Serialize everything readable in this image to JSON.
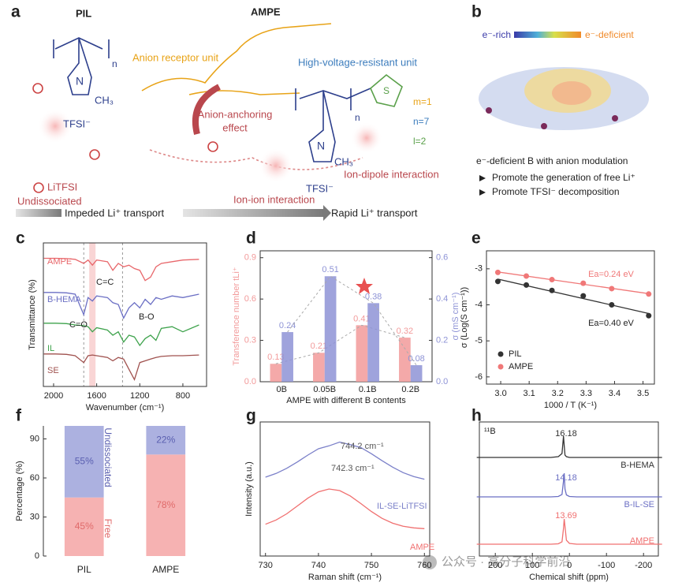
{
  "panel_a": {
    "label": "a",
    "pil": "PIL",
    "ampe": "AMPE",
    "n_pil": "n",
    "n_atom_1": "N",
    "ch3_1": "CH₃",
    "tfsi_1": "TFSI⁻",
    "anion_receptor": "Anion receptor unit",
    "high_voltage": "High-voltage-resistant unit",
    "anchoring_1": "Anion-anchoring",
    "anchoring_2": "effect",
    "m": "m=1",
    "n": "n=7",
    "l": "l=2",
    "n_ampe": "n",
    "n_atom_2": "N",
    "ch3_2": "CH₃",
    "tfsi_2": "TFSI⁻",
    "s_atom": "S",
    "litfsi": "LiTFSI",
    "undissociated": "Undissociated",
    "impeded": "Impeded Li⁺ transport",
    "ion_ion": "Ion-ion interaction",
    "ion_dipole": "Ion-dipole interaction",
    "rapid": "Rapid Li⁺ transport"
  },
  "panel_b": {
    "label": "b",
    "rich": "e⁻-rich",
    "deficient": "e⁻-deficient",
    "caption": "e⁻-deficient B with anion modulation",
    "points": [
      "Promote the generation of free Li⁺",
      "Promote TFSI⁻ decomposition"
    ]
  },
  "chart_data": [
    {
      "type": "line",
      "label": "c",
      "xlabel": "Wavenumber (cm⁻¹)",
      "ylabel": "Transmittance (%)",
      "xlim": [
        2095,
        580
      ],
      "xticks": [
        2000,
        1600,
        1200,
        800
      ],
      "ylim": [
        0,
        4.2
      ],
      "x": [
        2090,
        1980,
        1880,
        1800,
        1720,
        1680,
        1640,
        1600,
        1500,
        1450,
        1400,
        1350,
        1300,
        1250,
        1200,
        1150,
        1100,
        1050,
        1000,
        900,
        800,
        650
      ],
      "series": [
        {
          "name": "AMPE",
          "color": "#e8676b",
          "values": [
            3.75,
            3.75,
            3.74,
            3.72,
            3.6,
            3.7,
            3.55,
            3.7,
            3.65,
            3.4,
            3.6,
            3.5,
            3.55,
            3.45,
            3.4,
            3.1,
            3.2,
            3.5,
            3.6,
            3.65,
            3.7,
            3.72
          ]
        },
        {
          "name": "B-HEMA",
          "color": "#6b6fc4",
          "values": [
            2.75,
            2.75,
            2.74,
            2.7,
            2.1,
            2.6,
            2.5,
            2.65,
            2.6,
            2.45,
            2.4,
            2.0,
            2.3,
            2.45,
            2.3,
            2.55,
            2.4,
            2.6,
            2.55,
            2.65,
            2.6,
            2.7
          ]
        },
        {
          "name": "IL",
          "color": "#3fa34d",
          "values": [
            1.85,
            1.85,
            1.84,
            1.8,
            1.78,
            1.75,
            1.6,
            1.72,
            1.65,
            1.5,
            1.6,
            1.3,
            1.5,
            1.45,
            1.2,
            1.4,
            1.5,
            1.35,
            1.7,
            1.75,
            1.6,
            1.8
          ]
        },
        {
          "name": "SE",
          "color": "#a0524f",
          "values": [
            0.95,
            0.95,
            0.94,
            0.9,
            0.7,
            0.9,
            0.92,
            0.9,
            0.85,
            0.75,
            0.85,
            0.8,
            0.5,
            0.2,
            0.7,
            0.75,
            0.8,
            0.85,
            0.88,
            0.9,
            0.9,
            0.92
          ]
        }
      ],
      "annotations": [
        "C=C",
        "C=O",
        "B-O"
      ],
      "highlight_x": [
        1640,
        1720,
        1360
      ]
    },
    {
      "type": "bar",
      "label": "d",
      "xlabel": "AMPE with different B contents",
      "ylabel": "Transference number tLi⁺",
      "y2label": "σ (mS cm⁻¹)",
      "categories": [
        "0B",
        "0.05B",
        "0.1B",
        "0.2B"
      ],
      "ylim": [
        0,
        0.95
      ],
      "yticks": [
        {
          "value": 0,
          "label": "0.0"
        },
        0.3,
        0.6,
        0.9
      ],
      "y2lim": [
        0,
        0.633
      ],
      "y2ticks": [
        {
          "value": 0,
          "label": "0.0"
        },
        0.2,
        0.4,
        0.6
      ],
      "series": [
        {
          "color": "#f29a9a",
          "values": [
            0.13,
            0.21,
            0.41,
            0.32
          ]
        },
        {
          "color": "#8e93d6",
          "values": [
            0.24,
            0.51,
            0.38,
            0.08
          ],
          "axis": "y2"
        }
      ]
    },
    {
      "type": "scatter",
      "label": "e",
      "xlabel": "1000 / T (K⁻¹)",
      "ylabel": "σ (Log(S cm⁻¹))",
      "xlim": [
        2.95,
        3.54
      ],
      "xticks": [
        {
          "value": 3,
          "label": "3.0"
        },
        3.1,
        3.2,
        3.3,
        3.4,
        3.5
      ],
      "ylim": [
        -6.2,
        -2.5
      ],
      "yticks": [
        -3,
        -4,
        -5,
        -6
      ],
      "x": [
        2.99,
        3.09,
        3.18,
        3.29,
        3.39,
        3.52
      ],
      "series": [
        {
          "name": "PIL",
          "color": "#333333",
          "values": [
            -3.35,
            -3.45,
            -3.6,
            -3.75,
            -4.0,
            -4.3
          ]
        },
        {
          "name": "AMPE",
          "color": "#f07878",
          "values": [
            -3.1,
            -3.2,
            -3.3,
            -3.4,
            -3.55,
            -3.7
          ]
        }
      ],
      "annotations": [
        "Ea=0.40 eV",
        "Ea=0.24 eV"
      ],
      "legend": "lower left"
    },
    {
      "type": "bar",
      "stacked": true,
      "label": "f",
      "ylabel": "Percentage (%)",
      "categories": [
        "PIL",
        "AMPE"
      ],
      "ylim": [
        0,
        100
      ],
      "yticks": [
        0,
        30,
        60,
        90
      ],
      "series": [
        {
          "name": "Free",
          "color": "#f4a5a5",
          "values": [
            45,
            78
          ],
          "value_labels": [
            "45%",
            "78%"
          ]
        },
        {
          "name": "Undissociated",
          "color": "#9ea3db",
          "values": [
            55,
            22
          ],
          "value_labels": [
            "55%",
            "22%"
          ]
        }
      ]
    },
    {
      "type": "line",
      "label": "g",
      "xlabel": "Raman shift (cm⁻¹)",
      "ylabel": "Intensity (a.u.)",
      "xlim": [
        729,
        761
      ],
      "xticks": [
        730,
        740,
        750,
        760
      ],
      "ylim": [
        0,
        1
      ],
      "x": [
        730,
        732,
        734,
        736,
        738,
        740,
        742,
        744,
        746,
        748,
        750,
        752,
        754,
        756,
        758,
        760
      ],
      "series": [
        {
          "name": "IL-SE-LiTFSI",
          "color": "#7b80c9",
          "values": [
            0.588,
            0.616,
            0.654,
            0.701,
            0.753,
            0.8,
            0.822,
            0.85,
            0.831,
            0.809,
            0.763,
            0.711,
            0.663,
            0.622,
            0.593,
            0.573
          ]
        },
        {
          "name": "AMPE",
          "color": "#f07070",
          "values": [
            0.237,
            0.269,
            0.315,
            0.373,
            0.432,
            0.479,
            0.5,
            0.488,
            0.448,
            0.391,
            0.332,
            0.281,
            0.245,
            0.222,
            0.21,
            0.204
          ]
        }
      ],
      "annotations": [
        "744.2 cm⁻¹",
        "742.3 cm⁻¹"
      ]
    },
    {
      "type": "line",
      "label": "h",
      "xlabel": "Chemical shift (ppm)",
      "nucleus": "¹¹B",
      "xlim": [
        243,
        -240
      ],
      "xticks": [
        200,
        100,
        0,
        -100,
        -200
      ],
      "ylim": [
        0,
        3.4
      ],
      "x": [
        250,
        200,
        150,
        100,
        50,
        30,
        20,
        16,
        14,
        12,
        8,
        0,
        -20,
        -50,
        -100,
        -150,
        -200,
        -250
      ],
      "series": [
        {
          "name": "B-HEMA",
          "color": "#333333",
          "peak": 16.18,
          "values": [
            2.5,
            2.5,
            2.5,
            2.5,
            2.5,
            2.52,
            2.6,
            3.04,
            2.8,
            2.56,
            2.52,
            2.5,
            2.5,
            2.5,
            2.5,
            2.5,
            2.5,
            2.5
          ]
        },
        {
          "name": "B-IL-SE",
          "color": "#6b6fc4",
          "peak": 14.18,
          "values": [
            1.5,
            1.5,
            1.5,
            1.5,
            1.5,
            1.51,
            1.56,
            1.9,
            2.1,
            1.7,
            1.55,
            1.51,
            1.5,
            1.5,
            1.5,
            1.5,
            1.5,
            1.5
          ]
        },
        {
          "name": "AMPE",
          "color": "#f07070",
          "peak": 13.69,
          "values": [
            0.3,
            0.3,
            0.3,
            0.3,
            0.3,
            0.31,
            0.36,
            0.7,
            0.94,
            0.75,
            0.4,
            0.32,
            0.3,
            0.3,
            0.3,
            0.3,
            0.3,
            0.3
          ]
        }
      ]
    }
  ],
  "watermark": "公众号 · 高分子科学前沿"
}
